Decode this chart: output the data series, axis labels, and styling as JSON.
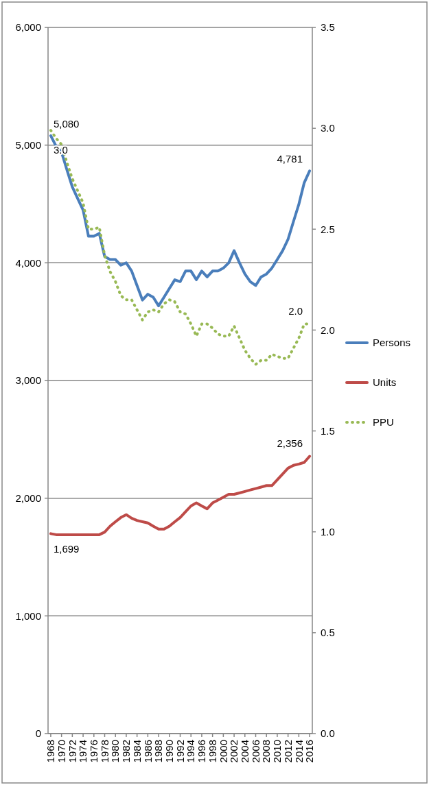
{
  "chart_data": {
    "type": "line",
    "x": [
      1968,
      1969,
      1970,
      1971,
      1972,
      1973,
      1974,
      1975,
      1976,
      1977,
      1978,
      1979,
      1980,
      1981,
      1982,
      1983,
      1984,
      1985,
      1986,
      1987,
      1988,
      1989,
      1990,
      1991,
      1992,
      1993,
      1994,
      1995,
      1996,
      1997,
      1998,
      1999,
      2000,
      2001,
      2002,
      2003,
      2004,
      2005,
      2006,
      2007,
      2008,
      2009,
      2010,
      2011,
      2012,
      2013,
      2014,
      2015,
      2016
    ],
    "series": [
      {
        "name": "Persons",
        "color": "#4a7ebb",
        "values": [
          5080,
          4990,
          4940,
          4790,
          4645,
          4546,
          4448,
          4226,
          4226,
          4250,
          4053,
          4028,
          4028,
          3980,
          4000,
          3930,
          3807,
          3684,
          3733,
          3708,
          3634,
          3708,
          3782,
          3856,
          3840,
          3930,
          3930,
          3856,
          3930,
          3880,
          3930,
          3930,
          3955,
          4000,
          4103,
          4000,
          3905,
          3840,
          3807,
          3880,
          3905,
          3955,
          4028,
          4103,
          4200,
          4350,
          4497,
          4680,
          4781
        ],
        "value_labels": [
          "5,080",
          null,
          null,
          null,
          null,
          null,
          null,
          null,
          null,
          null,
          null,
          null,
          null,
          null,
          null,
          null,
          null,
          null,
          null,
          null,
          null,
          null,
          null,
          null,
          null,
          null,
          null,
          null,
          null,
          null,
          null,
          null,
          null,
          null,
          null,
          null,
          null,
          null,
          null,
          null,
          null,
          null,
          null,
          null,
          null,
          null,
          null,
          null,
          "4,781"
        ]
      },
      {
        "name": "Units",
        "color": "#be4b48",
        "values": [
          1699,
          1690,
          1690,
          1690,
          1690,
          1690,
          1690,
          1690,
          1690,
          1690,
          1712,
          1762,
          1800,
          1836,
          1860,
          1830,
          1811,
          1800,
          1790,
          1762,
          1737,
          1737,
          1762,
          1800,
          1836,
          1885,
          1934,
          1960,
          1934,
          1910,
          1960,
          1984,
          2008,
          2033,
          2033,
          2045,
          2057,
          2070,
          2082,
          2094,
          2107,
          2107,
          2156,
          2205,
          2255,
          2279,
          2290,
          2304,
          2356
        ],
        "value_labels": [
          "1,699",
          null,
          null,
          null,
          null,
          null,
          null,
          null,
          null,
          null,
          null,
          null,
          null,
          null,
          null,
          null,
          null,
          null,
          null,
          null,
          null,
          null,
          null,
          null,
          null,
          null,
          null,
          null,
          null,
          null,
          null,
          null,
          null,
          null,
          null,
          null,
          null,
          null,
          null,
          null,
          null,
          null,
          null,
          null,
          null,
          null,
          null,
          null,
          "2,356"
        ]
      },
      {
        "name": "PPU",
        "color": "#98b954",
        "axis": "y2",
        "line_style": "dotted",
        "values": [
          2.99,
          2.95,
          2.92,
          2.83,
          2.75,
          2.69,
          2.63,
          2.5,
          2.5,
          2.51,
          2.37,
          2.29,
          2.24,
          2.17,
          2.15,
          2.15,
          2.1,
          2.05,
          2.09,
          2.1,
          2.09,
          2.13,
          2.15,
          2.14,
          2.09,
          2.08,
          2.03,
          1.97,
          2.03,
          2.03,
          2.01,
          1.98,
          1.97,
          1.97,
          2.02,
          1.96,
          1.9,
          1.86,
          1.83,
          1.85,
          1.85,
          1.88,
          1.87,
          1.86,
          1.86,
          1.91,
          1.96,
          2.03,
          2.03
        ],
        "value_labels": [
          "3.0",
          null,
          null,
          null,
          null,
          null,
          null,
          null,
          null,
          null,
          null,
          null,
          null,
          null,
          null,
          null,
          null,
          null,
          null,
          null,
          null,
          null,
          null,
          null,
          null,
          null,
          null,
          null,
          null,
          null,
          null,
          null,
          null,
          null,
          null,
          null,
          null,
          null,
          null,
          null,
          null,
          null,
          null,
          null,
          null,
          null,
          null,
          null,
          "2.0"
        ]
      }
    ],
    "xlim": [
      1967.5,
      2016.5
    ],
    "xticks": [
      1968,
      1970,
      1972,
      1974,
      1976,
      1978,
      1980,
      1982,
      1984,
      1986,
      1988,
      1990,
      1992,
      1994,
      1996,
      1998,
      2000,
      2002,
      2004,
      2006,
      2008,
      2010,
      2012,
      2014,
      2016
    ],
    "ylim": [
      0,
      6000
    ],
    "yticks": [
      {
        "value": 0,
        "label": "0"
      },
      {
        "value": 1000,
        "label": "1,000"
      },
      {
        "value": 2000,
        "label": "2,000"
      },
      {
        "value": 3000,
        "label": "3,000"
      },
      {
        "value": 4000,
        "label": "4,000"
      },
      {
        "value": 5000,
        "label": "5,000"
      },
      {
        "value": 6000,
        "label": "6,000"
      }
    ],
    "y2lim": [
      0,
      3.5
    ],
    "y2ticks": [
      {
        "value": 0,
        "label": "0.0"
      },
      {
        "value": 0.5,
        "label": "0.5"
      },
      {
        "value": 1,
        "label": "1.0"
      },
      {
        "value": 1.5,
        "label": "1.5"
      },
      {
        "value": 2,
        "label": "2.0"
      },
      {
        "value": 2.5,
        "label": "2.5"
      },
      {
        "value": 3,
        "label": "3.0"
      },
      {
        "value": 3.5,
        "label": "3.5"
      }
    ],
    "grid": "y",
    "legend": "right"
  }
}
